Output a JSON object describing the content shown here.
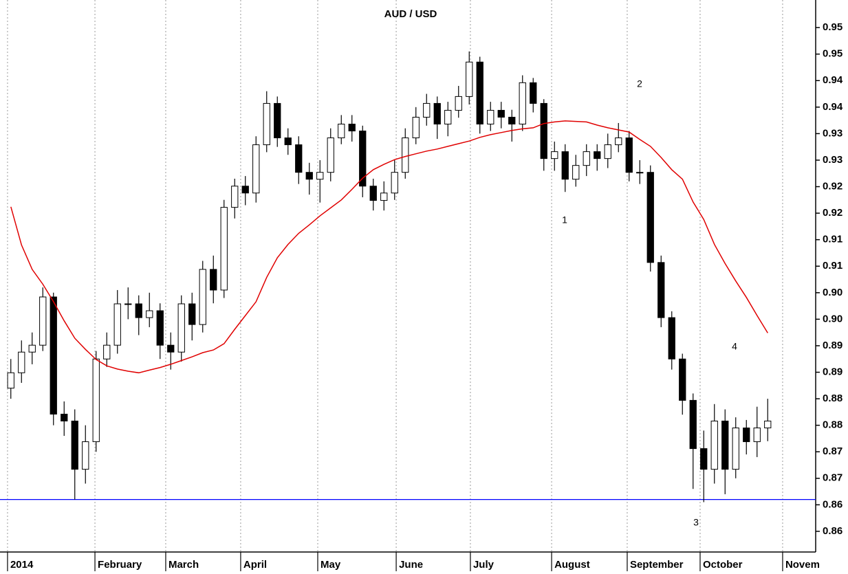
{
  "chart_data": {
    "type": "candlestick",
    "title": "AUD / USD",
    "categories": [
      null,
      null,
      null,
      null,
      null,
      null,
      null,
      null,
      null,
      null,
      null,
      null,
      null,
      null,
      null,
      null,
      null,
      null,
      null,
      null,
      null,
      null,
      null,
      null,
      null,
      null,
      null,
      null,
      null,
      null,
      null,
      null,
      null,
      null,
      null,
      null,
      null,
      null,
      null,
      null,
      null,
      null,
      null,
      null,
      null,
      null,
      null,
      null,
      null,
      null,
      null,
      null,
      null,
      null,
      null,
      null,
      null,
      null,
      null,
      null,
      null,
      null,
      null,
      null,
      null,
      null,
      null,
      null,
      null,
      null,
      null,
      null
    ],
    "open": [
      0.887,
      0.8899,
      0.8938,
      0.8951,
      0.9042,
      0.8821,
      0.8808,
      0.8717,
      0.8769,
      0.8925,
      0.8951,
      0.9029,
      0.9029,
      0.9003,
      0.9016,
      0.8951,
      0.8938,
      0.9029,
      0.899,
      0.9094,
      0.9055,
      0.9211,
      0.9251,
      0.9238,
      0.9329,
      0.9407,
      0.9342,
      0.9329,
      0.9277,
      0.9264,
      0.9277,
      0.9342,
      0.9368,
      0.9355,
      0.9251,
      0.9224,
      0.9238,
      0.9277,
      0.9342,
      0.9381,
      0.9407,
      0.9368,
      0.9394,
      0.942,
      0.9485,
      0.9368,
      0.9394,
      0.9381,
      0.9368,
      0.9446,
      0.9407,
      0.9303,
      0.9316,
      0.9264,
      0.929,
      0.9316,
      0.9303,
      0.9329,
      0.9342,
      0.9277,
      0.9277,
      0.9107,
      0.9003,
      0.8925,
      0.8847,
      0.8756,
      0.8717,
      0.8808,
      0.8717,
      0.8795,
      0.8769,
      0.8795
    ],
    "high": [
      0.8925,
      0.896,
      0.8975,
      0.906,
      0.905,
      0.8845,
      0.883,
      0.88,
      0.894,
      0.8975,
      0.9055,
      0.906,
      0.9045,
      0.905,
      0.903,
      0.8975,
      0.9045,
      0.905,
      0.911,
      0.912,
      0.9225,
      0.9265,
      0.927,
      0.9345,
      0.943,
      0.942,
      0.936,
      0.9345,
      0.9295,
      0.93,
      0.936,
      0.9385,
      0.9385,
      0.9365,
      0.9265,
      0.926,
      0.93,
      0.936,
      0.94,
      0.9425,
      0.942,
      0.941,
      0.944,
      0.9505,
      0.9495,
      0.941,
      0.941,
      0.9395,
      0.946,
      0.9455,
      0.9415,
      0.9335,
      0.933,
      0.931,
      0.933,
      0.933,
      0.935,
      0.937,
      0.9355,
      0.93,
      0.929,
      0.912,
      0.9015,
      0.8935,
      0.886,
      0.879,
      0.884,
      0.883,
      0.8815,
      0.881,
      0.8835,
      0.885
    ],
    "low": [
      0.885,
      0.888,
      0.8915,
      0.894,
      0.88,
      0.878,
      0.866,
      0.869,
      0.875,
      0.891,
      0.8935,
      0.9,
      0.897,
      0.8985,
      0.8925,
      0.8905,
      0.892,
      0.896,
      0.8975,
      0.903,
      0.904,
      0.919,
      0.9215,
      0.922,
      0.9315,
      0.9325,
      0.931,
      0.9255,
      0.9235,
      0.922,
      0.926,
      0.933,
      0.9335,
      0.923,
      0.9205,
      0.9205,
      0.9225,
      0.9265,
      0.933,
      0.9365,
      0.934,
      0.9345,
      0.938,
      0.9405,
      0.935,
      0.9355,
      0.936,
      0.9335,
      0.9355,
      0.939,
      0.928,
      0.928,
      0.924,
      0.925,
      0.927,
      0.928,
      0.9285,
      0.9315,
      0.926,
      0.9255,
      0.909,
      0.8985,
      0.8905,
      0.882,
      0.868,
      0.8655,
      0.869,
      0.867,
      0.87,
      0.8745,
      0.874,
      0.877
    ],
    "close": [
      0.8899,
      0.8938,
      0.8951,
      0.9042,
      0.8821,
      0.8808,
      0.8717,
      0.8769,
      0.8925,
      0.8951,
      0.9029,
      0.9029,
      0.9003,
      0.9016,
      0.8951,
      0.8938,
      0.9029,
      0.899,
      0.9094,
      0.9055,
      0.9211,
      0.9251,
      0.9238,
      0.9329,
      0.9407,
      0.9342,
      0.9329,
      0.9277,
      0.9264,
      0.9277,
      0.9342,
      0.9368,
      0.9355,
      0.9251,
      0.9224,
      0.9238,
      0.9277,
      0.9342,
      0.9381,
      0.9407,
      0.9368,
      0.9394,
      0.942,
      0.9485,
      0.9368,
      0.9394,
      0.9381,
      0.9368,
      0.9446,
      0.9407,
      0.9303,
      0.9316,
      0.9264,
      0.929,
      0.9316,
      0.9303,
      0.9329,
      0.9342,
      0.9277,
      0.9277,
      0.9107,
      0.9003,
      0.8925,
      0.8847,
      0.8756,
      0.8717,
      0.8808,
      0.8717,
      0.8795,
      0.8769,
      0.8795,
      0.8808
    ],
    "up_color": "#ffffff",
    "down_color": "#000000",
    "moving_average": {
      "color": "#e00000",
      "values": [
        0.9212,
        0.914,
        0.9094,
        0.9066,
        0.9033,
        0.8997,
        0.8964,
        0.8943,
        0.8924,
        0.8912,
        0.8906,
        0.8902,
        0.8899,
        0.8904,
        0.8909,
        0.8915,
        0.8922,
        0.8929,
        0.8937,
        0.8942,
        0.8954,
        0.8981,
        0.9007,
        0.9033,
        0.9079,
        0.9116,
        0.9141,
        0.9162,
        0.9178,
        0.9195,
        0.921,
        0.9225,
        0.9245,
        0.9266,
        0.9282,
        0.9292,
        0.9301,
        0.9307,
        0.9312,
        0.9317,
        0.9321,
        0.9326,
        0.9331,
        0.9336,
        0.9343,
        0.9348,
        0.9352,
        0.9356,
        0.9359,
        0.9361,
        0.9369,
        0.9372,
        0.9374,
        0.9373,
        0.9372,
        0.9366,
        0.9361,
        0.9357,
        0.9353,
        0.9339,
        0.9326,
        0.9305,
        0.9282,
        0.9264,
        0.9221,
        0.9188,
        0.9141,
        0.9105,
        0.9072,
        0.9041,
        0.9007,
        0.8974
      ]
    },
    "hline": {
      "value": 0.866,
      "color": "#0000ff"
    },
    "annotations": [
      "1",
      "2",
      "3",
      "4"
    ],
    "annotation_color": "#0000cc",
    "xlim": [
      0,
      76
    ],
    "xticks": [
      {
        "value": 0.19,
        "label": "2014"
      },
      {
        "value": 8.39,
        "label": "February"
      },
      {
        "value": 15.03,
        "label": "March"
      },
      {
        "value": 22.06,
        "label": "April"
      },
      {
        "value": 29.29,
        "label": "May"
      },
      {
        "value": 36.65,
        "label": "June"
      },
      {
        "value": 43.61,
        "label": "July"
      },
      {
        "value": 51.23,
        "label": "August"
      },
      {
        "value": 58.32,
        "label": "September"
      },
      {
        "value": 65.16,
        "label": "October"
      },
      {
        "value": 72.9,
        "label": "Novem"
      }
    ],
    "ylim": [
      0.9602,
      0.8561
    ],
    "yticks": [
      {
        "value": 0.955,
        "label": "0.95"
      },
      0.95,
      {
        "value": 0.945,
        "label": "0.94"
      },
      0.94,
      {
        "value": 0.935,
        "label": "0.93"
      },
      0.93,
      {
        "value": 0.925,
        "label": "0.92"
      },
      0.92,
      {
        "value": 0.915,
        "label": "0.91"
      },
      0.91,
      {
        "value": 0.905,
        "label": "0.90"
      },
      {
        "value": 0.9,
        "label": "0.90"
      },
      {
        "value": 0.895,
        "label": "0.89"
      },
      0.89,
      {
        "value": 0.885,
        "label": "0.88"
      },
      0.88,
      {
        "value": 0.875,
        "label": "0.87"
      },
      0.87,
      {
        "value": 0.865,
        "label": "0.86"
      },
      0.86
    ],
    "grid": true
  }
}
